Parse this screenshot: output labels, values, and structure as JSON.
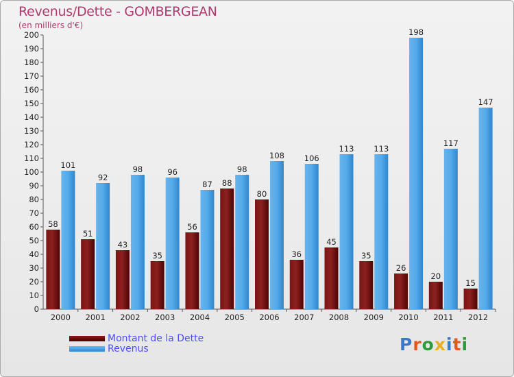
{
  "header": {
    "title": "Revenus/Dette - GOMBERGEAN",
    "subtitle": "(en milliers d'€)"
  },
  "logo": {
    "text": "Proxiti",
    "letter_colors": [
      "#3a78c8",
      "#e05a1c",
      "#2e9b3a",
      "#e8b020",
      "#3a78c8",
      "#e05a1c",
      "#2e9b3a"
    ]
  },
  "colors": {
    "debt": "#6b0d0d",
    "revenue": "#4ea5e6",
    "title": "#b03a70",
    "legend_text": "#4d4dff"
  },
  "chart_data": {
    "type": "bar",
    "categories": [
      "2000",
      "2001",
      "2002",
      "2003",
      "2004",
      "2005",
      "2006",
      "2007",
      "2008",
      "2009",
      "2010",
      "2011",
      "2012"
    ],
    "series": [
      {
        "name": "Montant de la Dette",
        "values": [
          58,
          51,
          43,
          35,
          56,
          88,
          80,
          36,
          45,
          35,
          26,
          20,
          15
        ]
      },
      {
        "name": "Revenus",
        "values": [
          101,
          92,
          98,
          96,
          87,
          98,
          108,
          106,
          113,
          113,
          198,
          117,
          147
        ]
      }
    ],
    "ylim": [
      0,
      200
    ],
    "ytick_step": 10,
    "grid": false,
    "legend_position": "bottom-left",
    "data_labels": true
  }
}
